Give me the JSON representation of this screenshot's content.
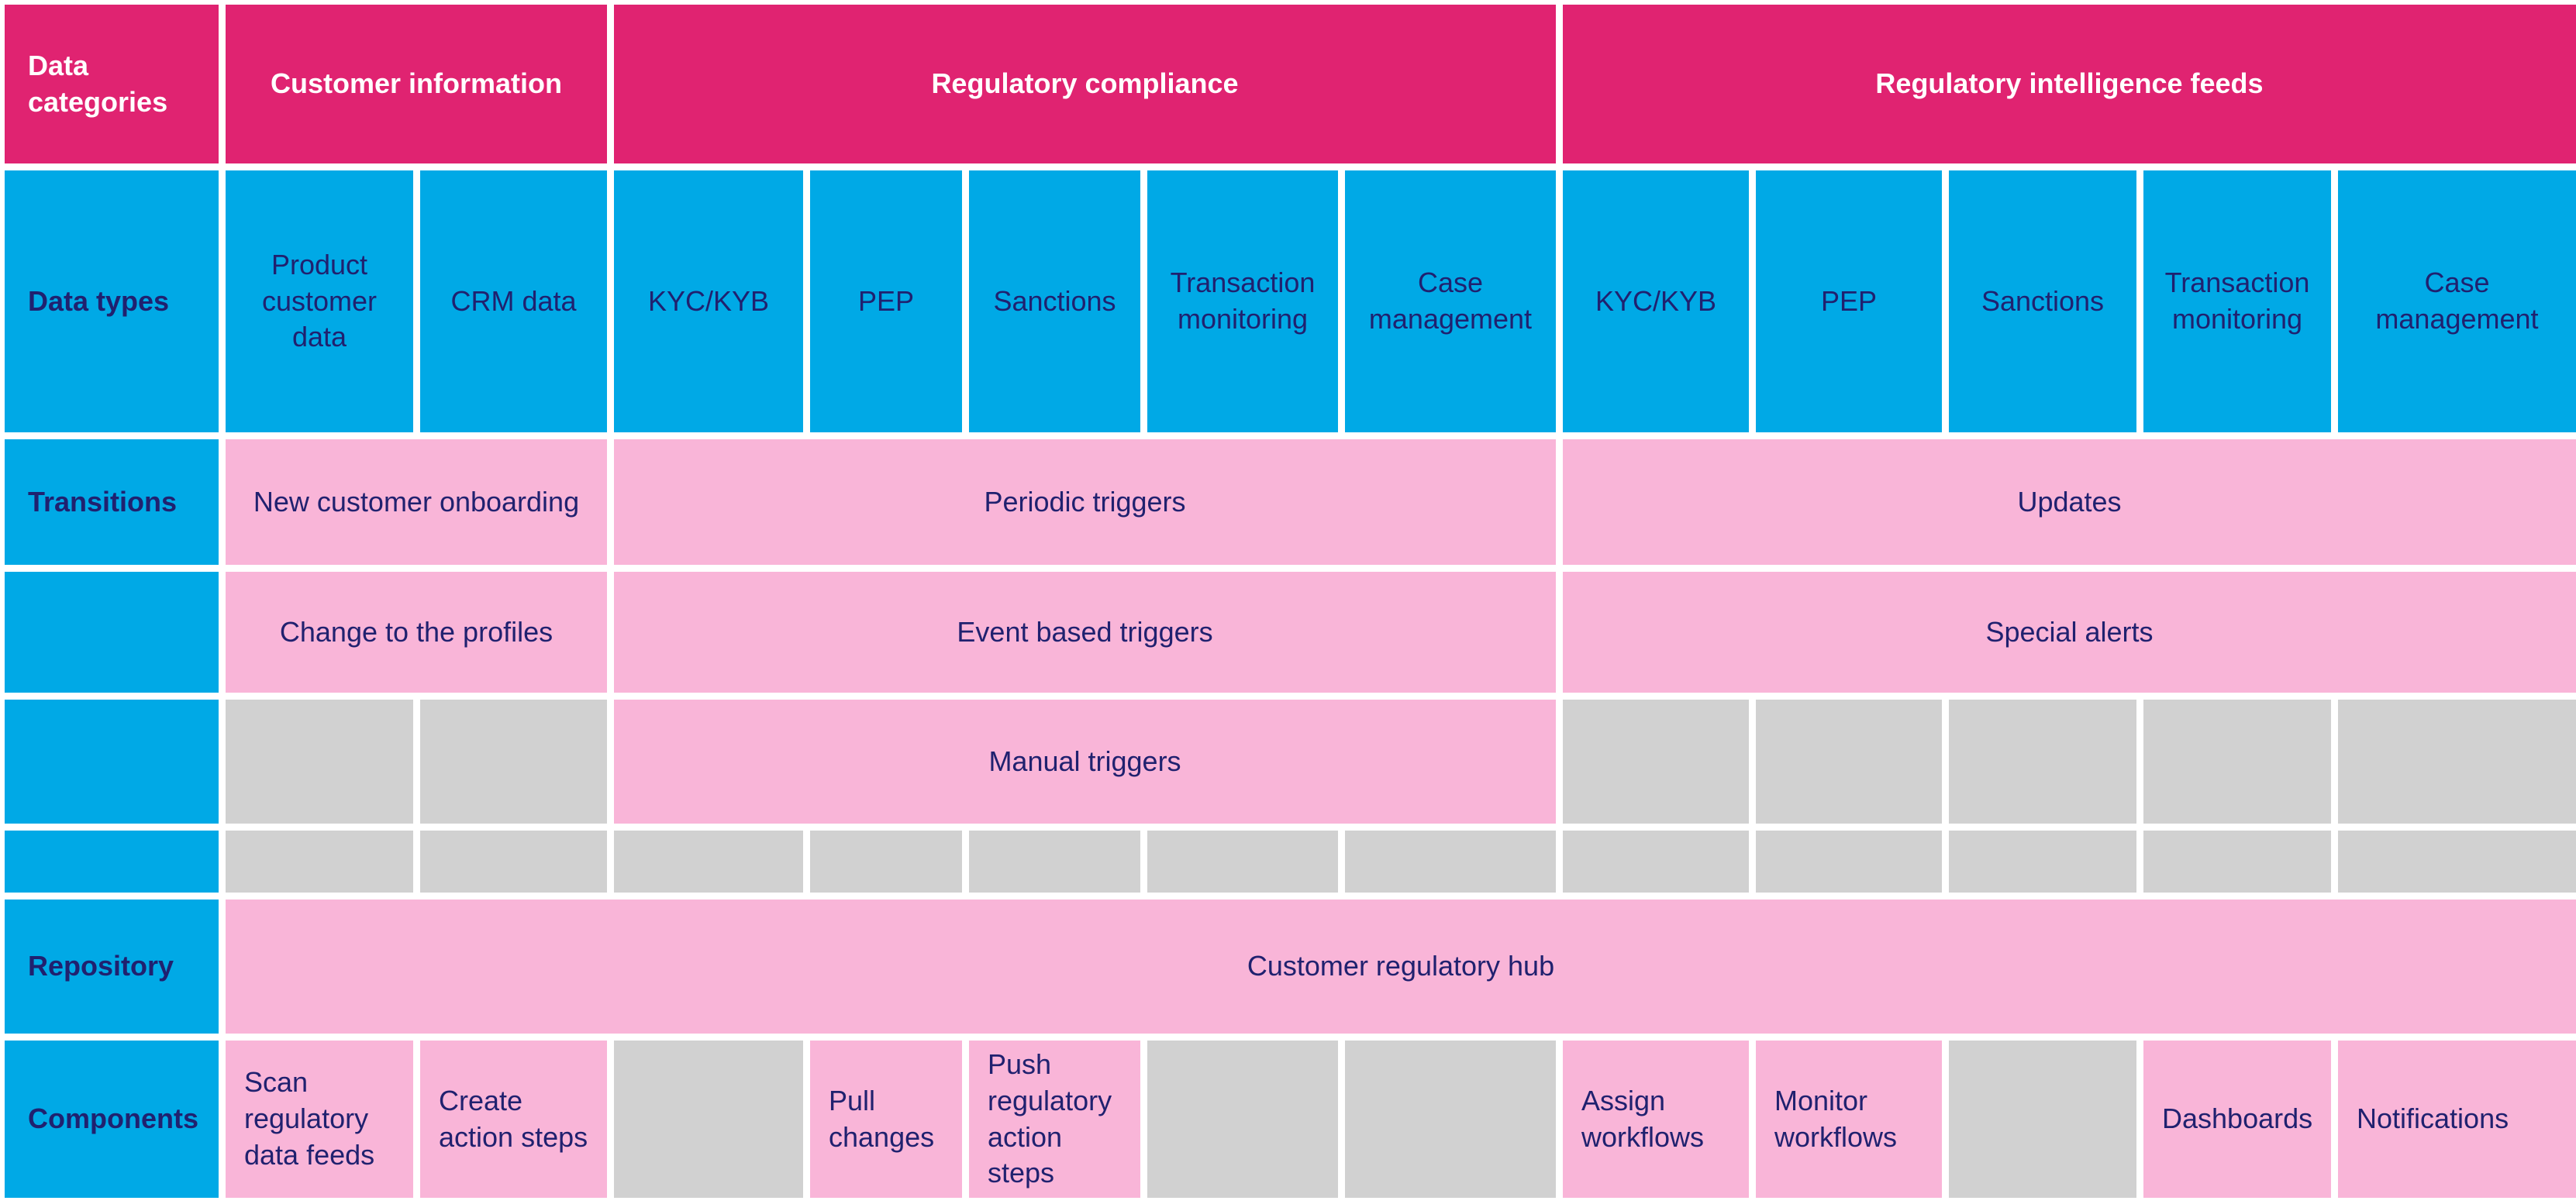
{
  "palette": {
    "magenta": "#e02371",
    "blue": "#00a9e6",
    "pink": "#f9b5d8",
    "gray": "#d1d1d1",
    "navy_text": "#20216f",
    "white_text": "#ffffff"
  },
  "header": {
    "label": "Data categories",
    "groups": [
      {
        "label": "Customer information",
        "span": 2
      },
      {
        "label": "Regulatory compliance",
        "span": 5
      },
      {
        "label": "Regulatory intelligence feeds",
        "span": 5
      }
    ]
  },
  "data_types": {
    "label": "Data types",
    "cells": [
      "Product customer data",
      "CRM data",
      "KYC/KYB",
      "PEP",
      "Sanctions",
      "Transaction monitoring",
      "Case management",
      "KYC/KYB",
      "PEP",
      "Sanctions",
      "Transaction monitoring",
      "Case management"
    ]
  },
  "transitions": {
    "label": "Transitions",
    "row1": {
      "customer": "New customer onboarding",
      "compliance": "Periodic triggers",
      "intelligence": "Updates"
    },
    "row2": {
      "customer": "Change to the profiles",
      "compliance": "Event based triggers",
      "intelligence": "Special alerts"
    },
    "row3": {
      "compliance": "Manual triggers"
    }
  },
  "repository": {
    "label": "Repository",
    "hub": "Customer regulatory hub"
  },
  "components": {
    "label": "Components",
    "cells": [
      "Scan regulatory data feeds",
      "Create action steps",
      "",
      "Pull changes",
      "Push regulatory action steps",
      "",
      "",
      "Assign workflows",
      "Monitor workflows",
      "",
      "Dashboards",
      "Notifications"
    ]
  }
}
